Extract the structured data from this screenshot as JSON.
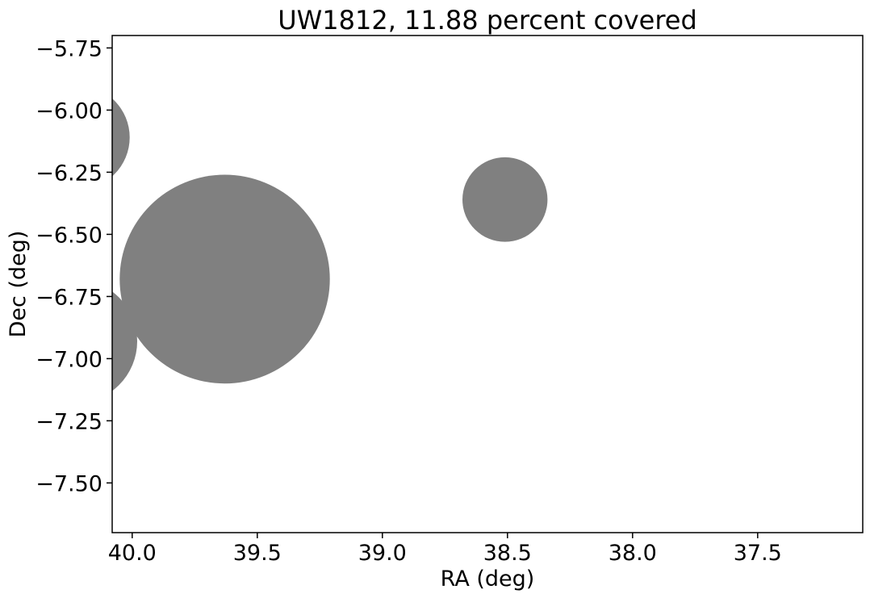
{
  "chart_data": {
    "type": "scatter",
    "title": "UW1812, 11.88 percent covered",
    "xlabel": "RA (deg)",
    "ylabel": "Dec (deg)",
    "xlim": [
      40.08,
      37.08
    ],
    "ylim": [
      -7.7,
      -5.7
    ],
    "x_inverted": true,
    "grid": false,
    "xticks": [
      40.0,
      39.5,
      39.0,
      38.5,
      38.0,
      37.5
    ],
    "xtick_labels": [
      "40.0",
      "39.5",
      "39.0",
      "38.5",
      "38.0",
      "37.5"
    ],
    "yticks": [
      -5.75,
      -6.0,
      -6.25,
      -6.5,
      -6.75,
      -7.0,
      -7.25,
      -7.5
    ],
    "ytick_labels": [
      "−5.75",
      "−6.00",
      "−6.25",
      "−6.50",
      "−6.75",
      "−7.00",
      "−7.25",
      "−7.50"
    ],
    "circle_color": "#808080",
    "circles": [
      {
        "ra": 40.22,
        "dec": -6.11,
        "radius": 0.21
      },
      {
        "ra": 39.63,
        "dec": -6.68,
        "radius": 0.42
      },
      {
        "ra": 40.23,
        "dec": -6.93,
        "radius": 0.25
      },
      {
        "ra": 38.51,
        "dec": -6.36,
        "radius": 0.17
      }
    ]
  }
}
